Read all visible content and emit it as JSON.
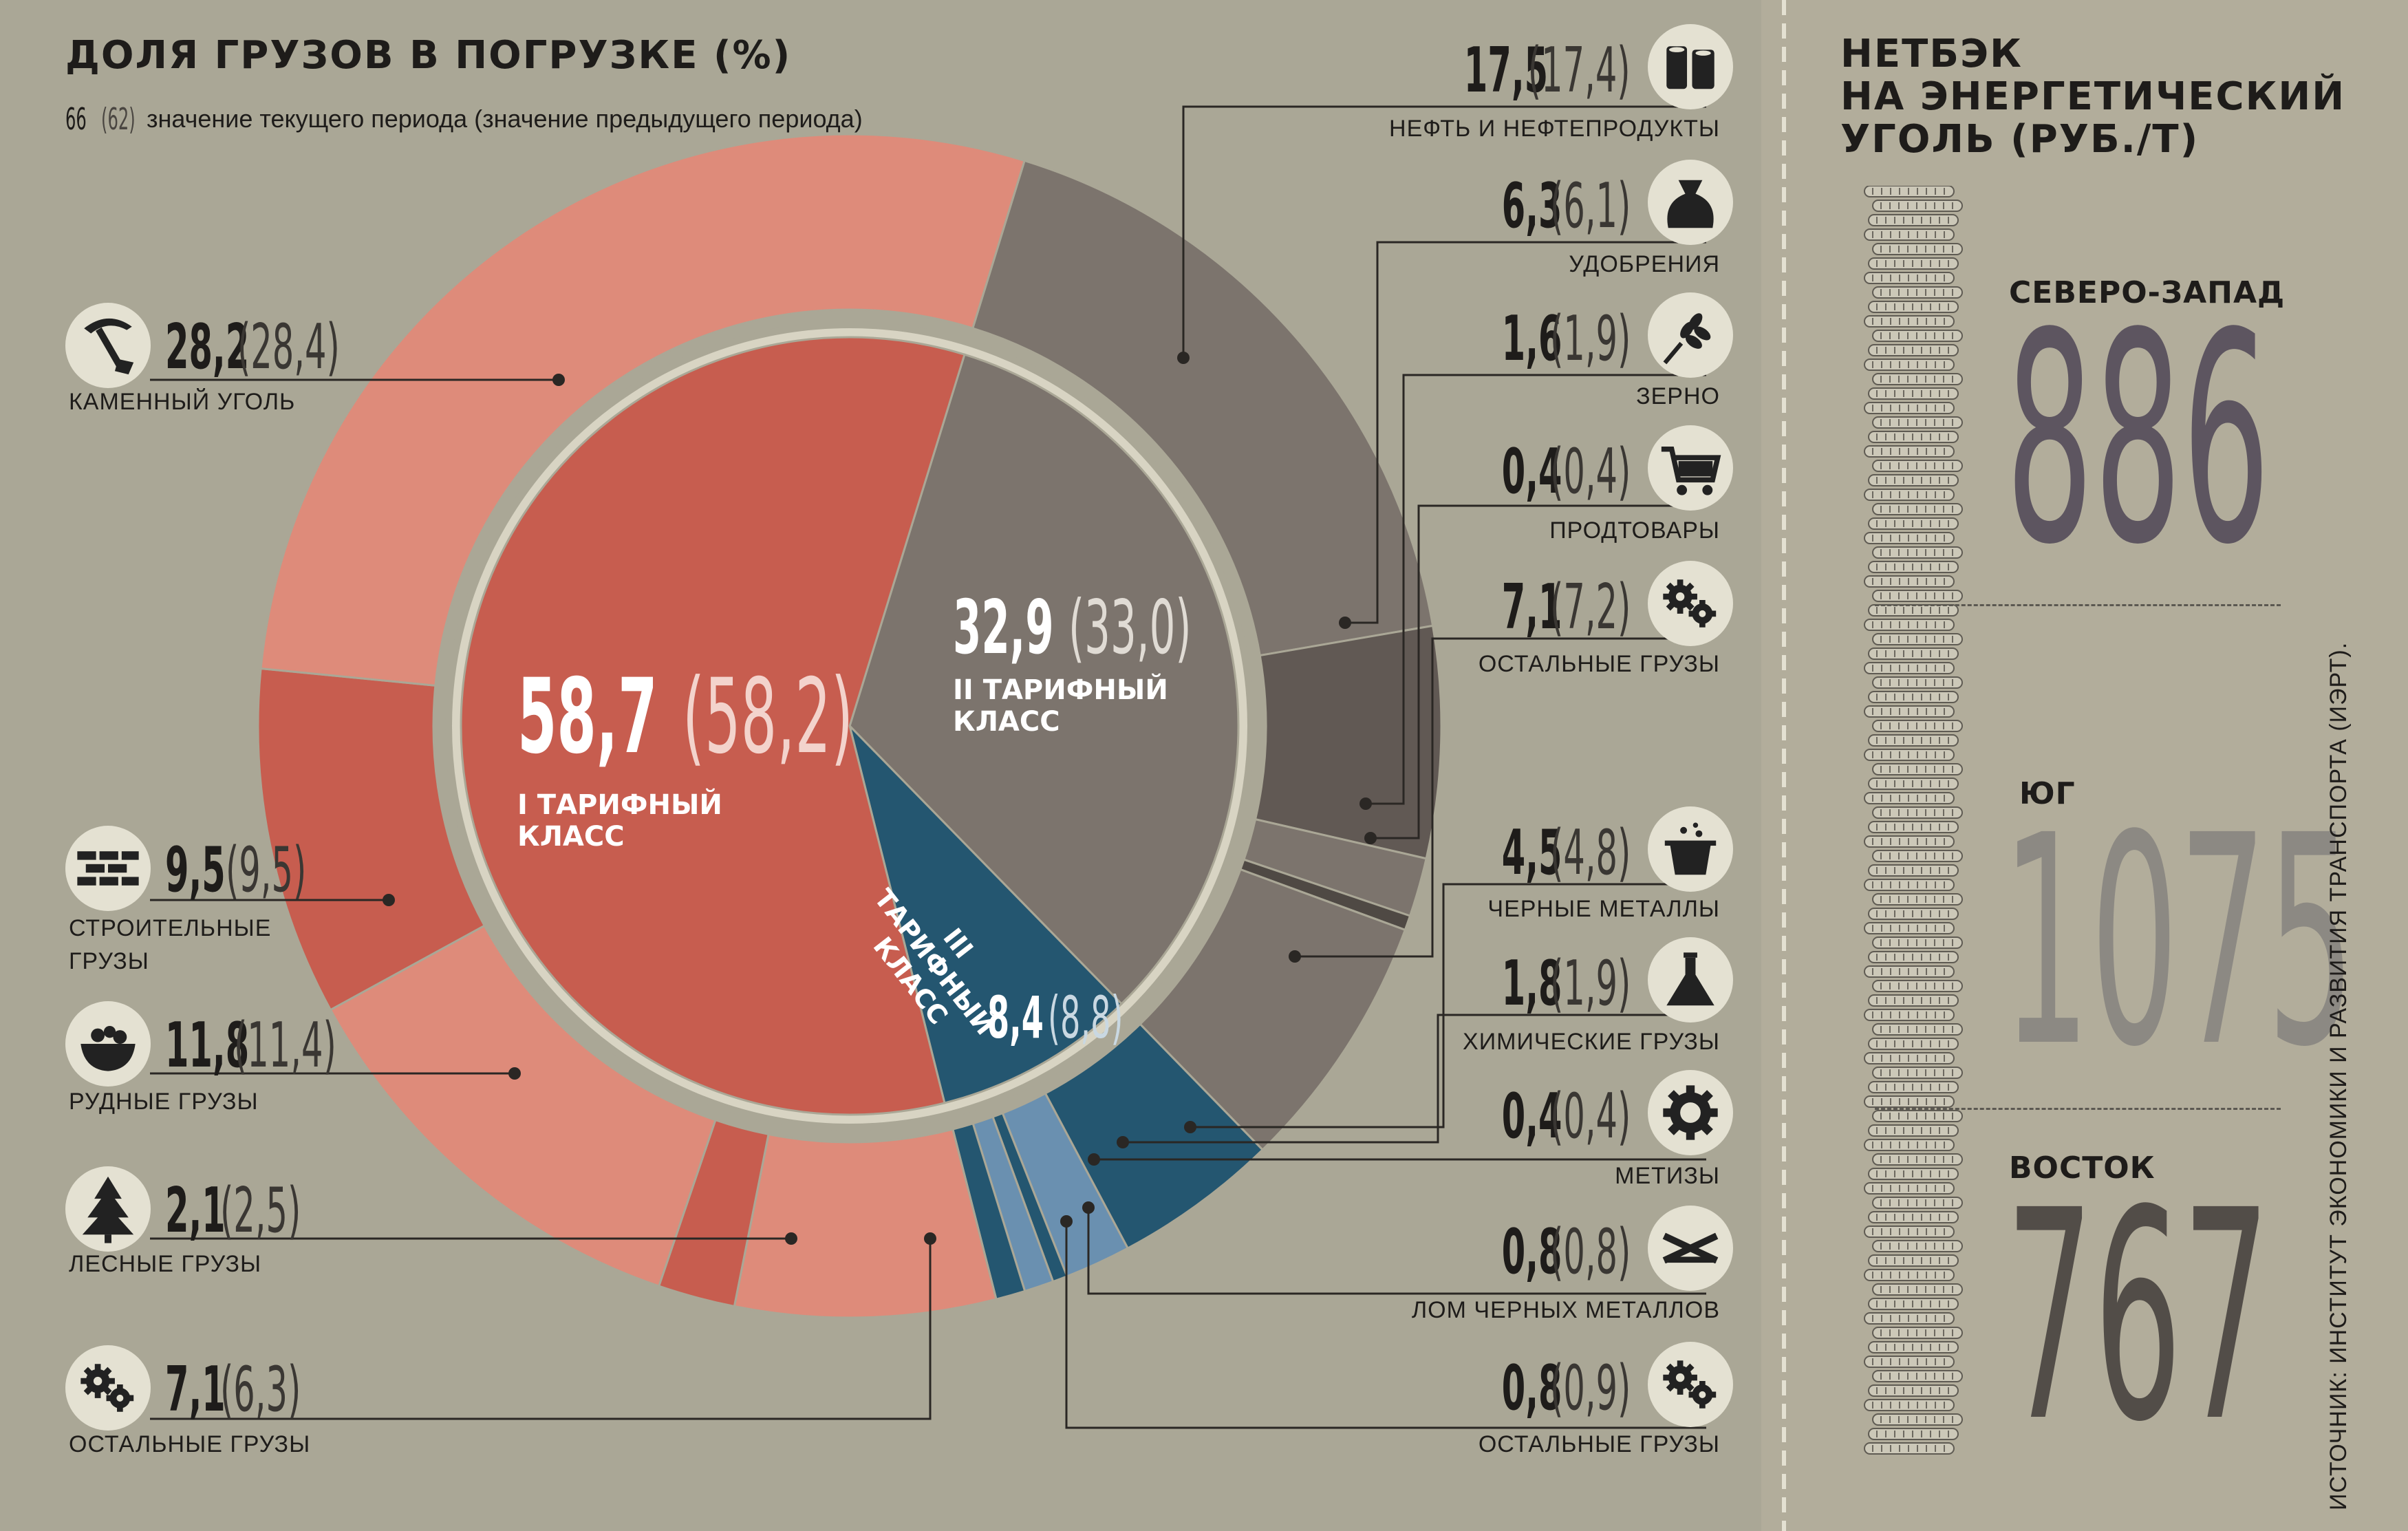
{
  "title": "ДОЛЯ ГРУЗОВ В ПОГРУЗКЕ (%)",
  "legend": {
    "current": "66",
    "previous": "(62)",
    "text": "значение текущего периода (значение предыдущего периода)"
  },
  "classes": [
    {
      "value": "58,7",
      "prev": "(58,2)",
      "label_line1": "I ТАРИФНЫЙ",
      "label_line2": "КЛАСС",
      "color": "#c75d4f"
    },
    {
      "value": "32,9",
      "prev": "(33,0)",
      "label_line1": "II ТАРИФНЫЙ",
      "label_line2": "КЛАСС",
      "color": "#7c746d"
    },
    {
      "value": "8,4",
      "prev": "(8,8)",
      "label_line1": "III ТАРИФНЫЙ",
      "label_line2": "КЛАСС",
      "color": "#245670"
    }
  ],
  "left_items": [
    {
      "value": "28,2",
      "prev": "(28,4)",
      "label": "КАМЕННЫЙ УГОЛЬ",
      "icon": "pickaxe-icon"
    },
    {
      "value": "9,5",
      "prev": "(9,5)",
      "label": "СТРОИТЕЛЬНЫЕ ГРУЗЫ",
      "icon": "bricks-icon"
    },
    {
      "value": "11,8",
      "prev": "(11,4)",
      "label": "РУДНЫЕ ГРУЗЫ",
      "icon": "ore-cart-icon"
    },
    {
      "value": "2,1",
      "prev": "(2,5)",
      "label": "ЛЕСНЫЕ ГРУЗЫ",
      "icon": "tree-icon"
    },
    {
      "value": "7,1",
      "prev": "(6,3)",
      "label": "ОСТАЛЬНЫЕ ГРУЗЫ",
      "icon": "gears-icon"
    }
  ],
  "right_items": [
    {
      "value": "17,5",
      "prev": "(17,4)",
      "label": "НЕФТЬ И НЕФТЕПРОДУКТЫ",
      "icon": "barrels-icon"
    },
    {
      "value": "6,3",
      "prev": "(6,1)",
      "label": "УДОБРЕНИЯ",
      "icon": "fertilizer-bag-icon"
    },
    {
      "value": "1,6",
      "prev": "(1,9)",
      "label": "ЗЕРНО",
      "icon": "wheat-icon"
    },
    {
      "value": "0,4",
      "prev": "(0,4)",
      "label": "ПРОДТОВАРЫ",
      "icon": "cart-icon"
    },
    {
      "value": "7,1",
      "prev": "(7,2)",
      "label": "ОСТАЛЬНЫЕ ГРУЗЫ",
      "icon": "gears-icon"
    },
    {
      "value": "4,5",
      "prev": "(4,8)",
      "label": "ЧЕРНЫЕ МЕТАЛЛЫ",
      "icon": "ladle-icon"
    },
    {
      "value": "1,8",
      "prev": "(1,9)",
      "label": "ХИМИЧЕСКИЕ ГРУЗЫ",
      "icon": "flask-icon"
    },
    {
      "value": "0,4",
      "prev": "(0,4)",
      "label": "МЕТИЗЫ",
      "icon": "gear-icon"
    },
    {
      "value": "0,8",
      "prev": "(0,8)",
      "label": "ЛОМ ЧЕРНЫХ МЕТАЛЛОВ",
      "icon": "scrap-icon"
    },
    {
      "value": "0,8",
      "prev": "(0,9)",
      "label": "ОСТАЛЬНЫЕ ГРУЗЫ",
      "icon": "gears-icon"
    }
  ],
  "sidebar": {
    "title_line1": "НЕТБЭК",
    "title_line2": "НА ЭНЕРГЕТИЧЕСКИЙ",
    "title_line3": "УГОЛЬ (РУБ./Т)",
    "regions": [
      {
        "name": "СЕВЕРО-ЗАПАД",
        "value": "886",
        "color": "#5d5560"
      },
      {
        "name": "ЮГ",
        "value": "1075",
        "color": "#8c8983"
      },
      {
        "name": "ВОСТОК",
        "value": "767",
        "color": "#524d48"
      }
    ],
    "source": "ИСТОЧНИК: ИНСТИТУТ ЭКОНОМИКИ И РАЗВИТИЯ ТРАНСПОРТА (ИЭРТ)."
  },
  "chart_data": [
    {
      "type": "pie",
      "title": "ДОЛЯ ГРУЗОВ В ПОГРУЗКЕ (%)",
      "ring": "inner",
      "categories": [
        "I ТАРИФНЫЙ КЛАСС",
        "II ТАРИФНЫЙ КЛАСС",
        "III ТАРИФНЫЙ КЛАСС"
      ],
      "values": [
        58.7,
        32.9,
        8.4
      ],
      "previous_values": [
        58.2,
        33.0,
        8.8
      ]
    },
    {
      "type": "pie",
      "ring": "outer",
      "categories": [
        "НЕФТЬ И НЕФТЕПРОДУКТЫ",
        "УДОБРЕНИЯ",
        "ЗЕРНО",
        "ПРОДТОВАРЫ",
        "ОСТАЛЬНЫЕ ГРУЗЫ (II)",
        "ЧЕРНЫЕ МЕТАЛЛЫ",
        "ХИМИЧЕСКИЕ ГРУЗЫ",
        "МЕТИЗЫ",
        "ЛОМ ЧЕРНЫХ МЕТАЛЛОВ",
        "ОСТАЛЬНЫЕ ГРУЗЫ (III)",
        "ОСТАЛЬНЫЕ ГРУЗЫ (I)",
        "ЛЕСНЫЕ ГРУЗЫ",
        "РУДНЫЕ ГРУЗЫ",
        "СТРОИТЕЛЬНЫЕ ГРУЗЫ",
        "КАМЕННЫЙ УГОЛЬ"
      ],
      "values": [
        17.5,
        6.3,
        1.6,
        0.4,
        7.1,
        4.5,
        1.8,
        0.4,
        0.8,
        0.8,
        7.1,
        2.1,
        11.8,
        9.5,
        28.2
      ],
      "previous_values": [
        17.4,
        6.1,
        1.9,
        0.4,
        7.2,
        4.8,
        1.9,
        0.4,
        0.8,
        0.9,
        6.3,
        2.5,
        11.4,
        9.5,
        28.4
      ],
      "colors": [
        "#7c746d",
        "#615954",
        "#7c746d",
        "#4f4944",
        "#7c746d",
        "#245670",
        "#6a90b0",
        "#245670",
        "#6a90b0",
        "#245670",
        "#de8b7a",
        "#c75d4f",
        "#de8b7a",
        "#c75d4f",
        "#de8b7a"
      ]
    },
    {
      "type": "bar",
      "title": "НЕТБЭК НА ЭНЕРГЕТИЧЕСКИЙ УГОЛЬ (РУБ./Т)",
      "categories": [
        "СЕВЕРО-ЗАПАД",
        "ЮГ",
        "ВОСТОК"
      ],
      "values": [
        886,
        1075,
        767
      ]
    }
  ]
}
